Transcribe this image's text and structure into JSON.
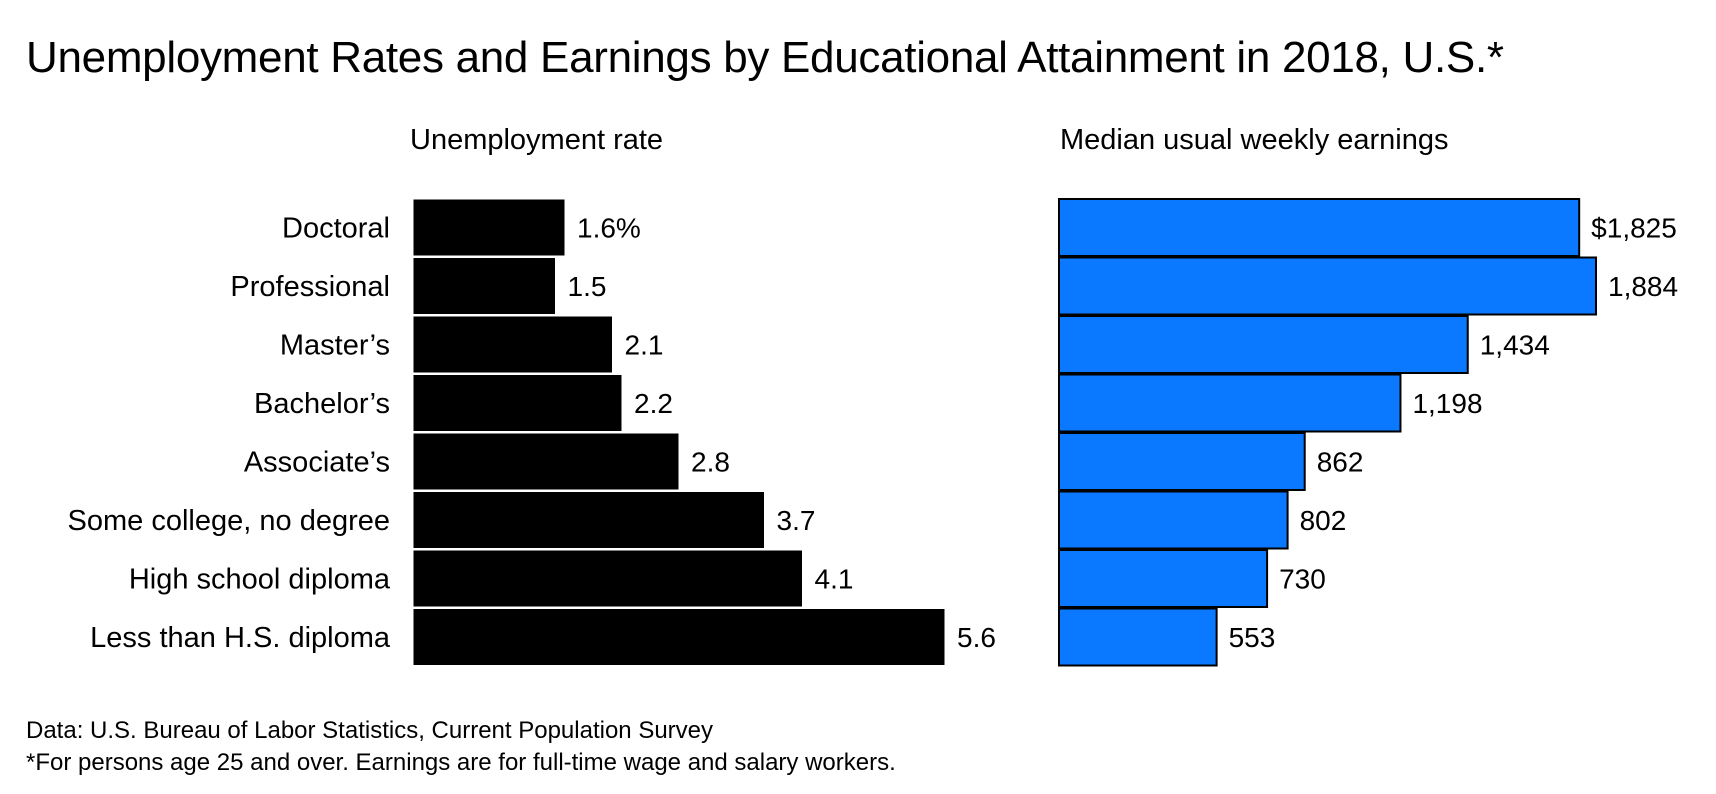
{
  "title": "Unemployment Rates and Earnings by Educational Attainment in 2018, U.S.*",
  "footer": {
    "source": "Data: U.S. Bureau of Labor Statistics, Current Population Survey",
    "note": "*For persons age 25 and over. Earnings are for full-time wage and salary workers."
  },
  "colors": {
    "unemployment_bar": "#000000",
    "earnings_bar": "#0a78ff",
    "bar_stroke": "#000000",
    "text": "#000000",
    "background": "#ffffff"
  },
  "chart_data": [
    {
      "type": "bar",
      "orientation": "horizontal",
      "title": "Unemployment rate",
      "unit": "%",
      "categories": [
        "Doctoral",
        "Professional",
        "Master’s",
        "Bachelor’s",
        "Associate’s",
        "Some college, no degree",
        "High school diploma",
        "Less than H.S. diploma"
      ],
      "values": [
        1.6,
        1.5,
        2.1,
        2.2,
        2.8,
        3.7,
        4.1,
        5.6
      ],
      "value_labels": [
        "1.6%",
        "1.5",
        "2.1",
        "2.2",
        "2.8",
        "3.7",
        "4.1",
        "5.6"
      ],
      "xlim": [
        0,
        5.6
      ],
      "grid": false,
      "legend": "none"
    },
    {
      "type": "bar",
      "orientation": "horizontal",
      "title": "Median usual weekly earnings",
      "unit": "$",
      "categories": [
        "Doctoral",
        "Professional",
        "Master’s",
        "Bachelor’s",
        "Associate’s",
        "Some college, no degree",
        "High school diploma",
        "Less than H.S. diploma"
      ],
      "values": [
        1825,
        1884,
        1434,
        1198,
        862,
        802,
        730,
        553
      ],
      "value_labels": [
        "$1,825",
        "1,884",
        "1,434",
        "1,198",
        "862",
        "802",
        "730",
        "553"
      ],
      "xlim": [
        0,
        1884
      ],
      "grid": false,
      "legend": "none"
    }
  ]
}
